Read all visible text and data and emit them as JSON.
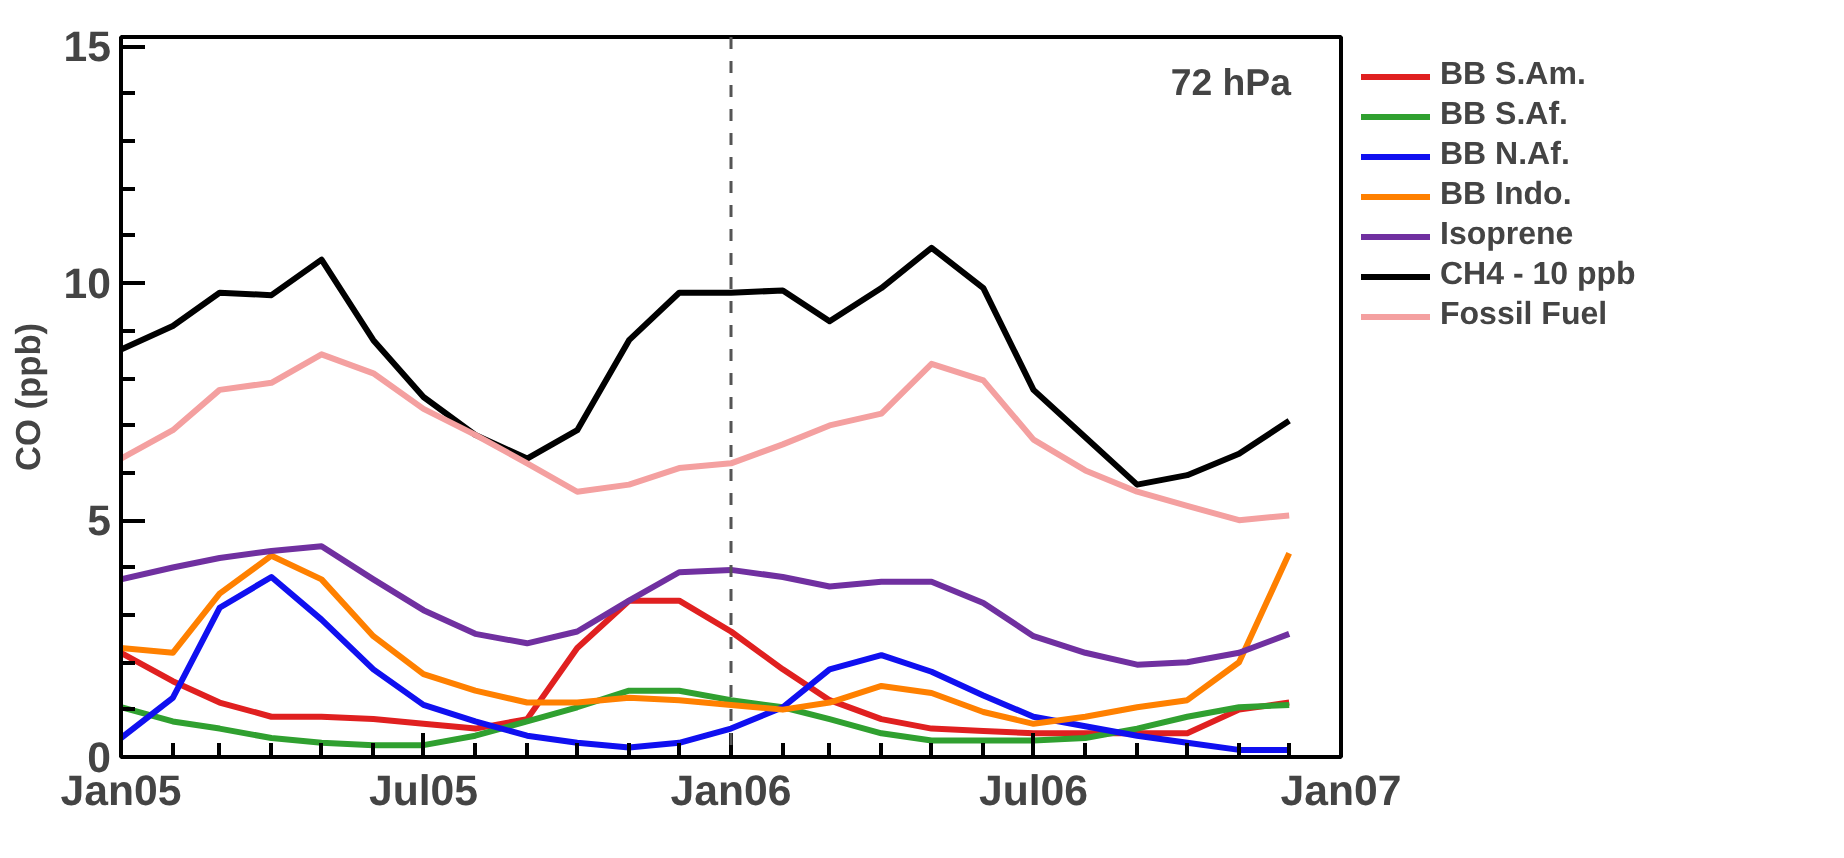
{
  "chart_data": {
    "type": "line",
    "ylabel": "CO (ppb)",
    "x": [
      "2005-01",
      "2005-02",
      "2005-03",
      "2005-04",
      "2005-05",
      "2005-06",
      "2005-07",
      "2005-08",
      "2005-09",
      "2005-10",
      "2005-11",
      "2005-12",
      "2006-01",
      "2006-02",
      "2006-03",
      "2006-04",
      "2006-05",
      "2006-06",
      "2006-07",
      "2006-08",
      "2006-09",
      "2006-10",
      "2006-11",
      "2006-12"
    ],
    "xlim": [
      "2005-01",
      "2007-01"
    ],
    "xticks": [
      {
        "value": "2005-01",
        "label": "Jan05"
      },
      {
        "value": "2005-07",
        "label": "Jul05"
      },
      {
        "value": "2006-01",
        "label": "Jan06"
      },
      {
        "value": "2006-07",
        "label": "Jul06"
      },
      {
        "value": "2007-01",
        "label": "Jan07"
      }
    ],
    "ylim": [
      0,
      15.2
    ],
    "yticks": [
      0,
      5,
      10,
      15
    ],
    "grid": false,
    "legend": "right",
    "line_style": "solid",
    "marker": "none",
    "annotations": [
      "72 hPa"
    ],
    "ref_lines": [
      {
        "axis": "x",
        "value": "2006-01",
        "label": null,
        "color": "#555555",
        "line_style": "dashed"
      }
    ],
    "series": [
      {
        "name": "BB S.Am.",
        "color": "#e02020",
        "values": [
          2.2,
          1.6,
          1.15,
          0.85,
          0.85,
          0.8,
          0.7,
          0.6,
          0.8,
          2.3,
          3.3,
          3.3,
          2.65,
          1.85,
          1.2,
          0.8,
          0.6,
          0.55,
          0.5,
          0.5,
          0.5,
          0.5,
          1.0,
          1.15
        ]
      },
      {
        "name": "BB S.Af.",
        "color": "#30a030",
        "values": [
          1.05,
          0.75,
          0.6,
          0.4,
          0.3,
          0.25,
          0.25,
          0.45,
          0.75,
          1.05,
          1.4,
          1.4,
          1.2,
          1.05,
          0.8,
          0.5,
          0.35,
          0.35,
          0.35,
          0.4,
          0.6,
          0.85,
          1.05,
          1.1
        ]
      },
      {
        "name": "BB N.Af.",
        "color": "#1010f0",
        "values": [
          0.4,
          1.25,
          3.15,
          3.8,
          2.9,
          1.85,
          1.1,
          0.75,
          0.45,
          0.3,
          0.2,
          0.3,
          0.6,
          1.05,
          1.85,
          2.15,
          1.8,
          1.3,
          0.85,
          0.65,
          0.45,
          0.3,
          0.15,
          0.15
        ]
      },
      {
        "name": "BB Indo.",
        "color": "#ff8000",
        "values": [
          2.3,
          2.2,
          3.45,
          4.25,
          3.75,
          2.55,
          1.75,
          1.4,
          1.15,
          1.15,
          1.25,
          1.2,
          1.1,
          1.0,
          1.15,
          1.5,
          1.35,
          0.95,
          0.7,
          0.85,
          1.05,
          1.2,
          2.0,
          4.3
        ]
      },
      {
        "name": "Isoprene",
        "color": "#7030a0",
        "values": [
          3.75,
          4.0,
          4.2,
          4.35,
          4.45,
          3.75,
          3.1,
          2.6,
          2.4,
          2.65,
          3.3,
          3.9,
          3.95,
          3.8,
          3.6,
          3.7,
          3.7,
          3.25,
          2.55,
          2.2,
          1.95,
          2.0,
          2.2,
          2.6
        ]
      },
      {
        "name": "CH4 - 10 ppb",
        "color": "#000000",
        "values": [
          8.6,
          9.1,
          9.8,
          9.75,
          10.5,
          8.8,
          7.6,
          6.8,
          6.3,
          6.9,
          8.8,
          9.8,
          9.8,
          9.85,
          9.2,
          9.9,
          10.75,
          9.9,
          7.75,
          6.75,
          5.75,
          5.95,
          6.4,
          7.1
        ]
      },
      {
        "name": "Fossil Fuel",
        "color": "#f4a0a0",
        "values": [
          6.3,
          6.9,
          7.75,
          7.9,
          8.5,
          8.1,
          7.35,
          6.8,
          6.2,
          5.6,
          5.75,
          6.1,
          6.2,
          6.6,
          7.0,
          7.25,
          8.3,
          7.95,
          6.7,
          6.05,
          5.6,
          5.3,
          5.0,
          5.1
        ]
      }
    ]
  }
}
